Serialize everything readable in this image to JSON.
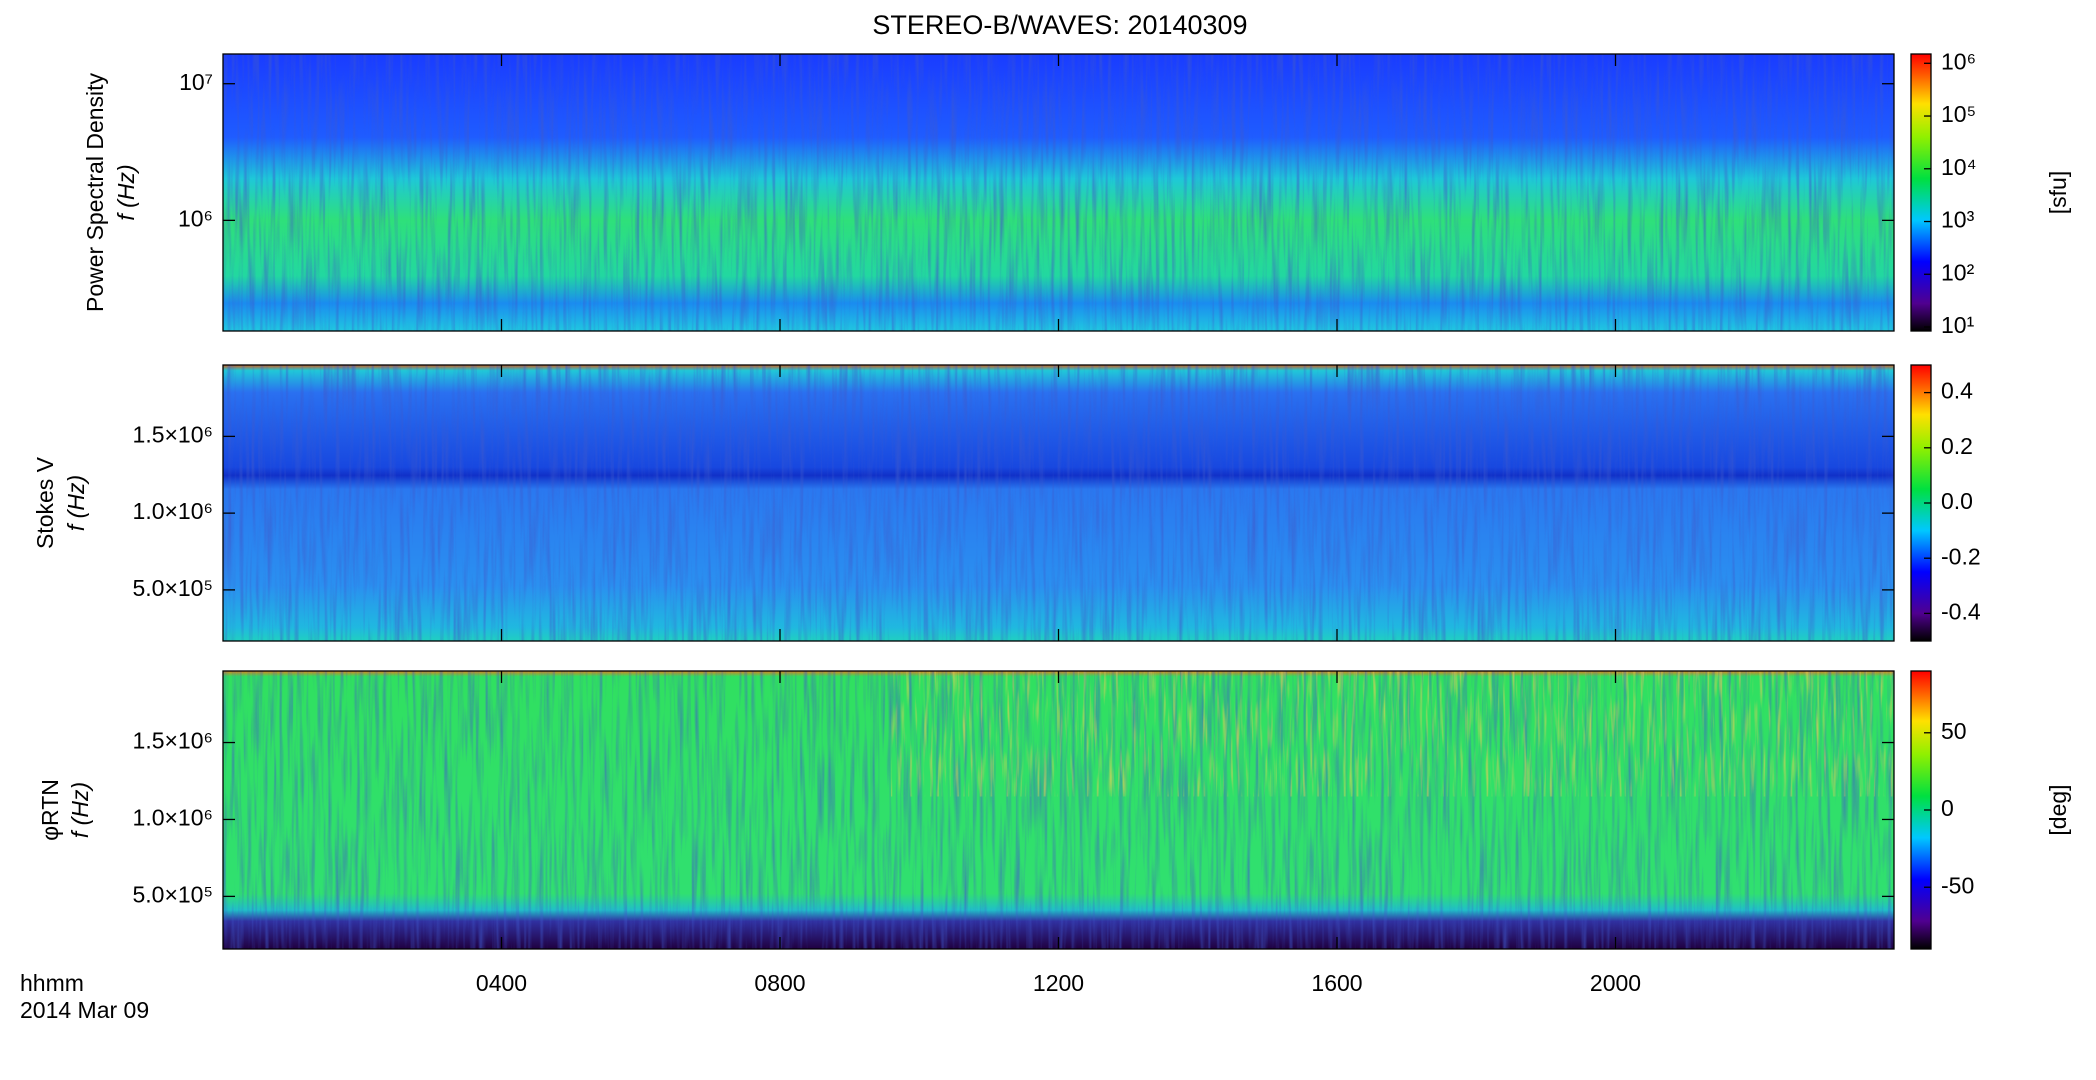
{
  "figure": {
    "title": "STEREO-B/WAVES: 20140309",
    "xlabel": "hhmm",
    "date": "2014 Mar 09"
  },
  "chart_data": [
    {
      "type": "spectrogram",
      "ylabel": "Power Spectral Density",
      "ylabel2": "f (Hz)",
      "ylog": true,
      "ylim": [
        155000,
        16500000
      ],
      "yticks": [
        {
          "value": 1000000,
          "label": "10⁶"
        },
        {
          "value": 10000000,
          "label": "10⁷"
        }
      ],
      "xlim": [
        0,
        24
      ],
      "xticks": [
        {
          "value": 4,
          "label": "0400"
        },
        {
          "value": 8,
          "label": "0800"
        },
        {
          "value": 12,
          "label": "1200"
        },
        {
          "value": 16,
          "label": "1600"
        },
        {
          "value": 20,
          "label": "2000"
        }
      ],
      "colorbar": {
        "log": true,
        "lim": [
          8.4,
          1500000
        ],
        "label": "[sfu]",
        "ticks": [
          {
            "value": 10,
            "label": "10¹"
          },
          {
            "value": 100,
            "label": "10²"
          },
          {
            "value": 1000,
            "label": "10³"
          },
          {
            "value": 10000,
            "label": "10⁴"
          },
          {
            "value": 100000,
            "label": "10⁵"
          },
          {
            "value": 1000000,
            "label": "10⁶"
          }
        ]
      }
    },
    {
      "type": "spectrogram",
      "ylabel": "Stokes V",
      "ylabel2": "f (Hz)",
      "ylog": false,
      "ylim": [
        167000,
        1965000
      ],
      "yticks": [
        {
          "value": 500000,
          "label": "5.0×10⁵"
        },
        {
          "value": 1000000,
          "label": "1.0×10⁶"
        },
        {
          "value": 1500000,
          "label": "1.5×10⁶"
        }
      ],
      "xlim": [
        0,
        24
      ],
      "xticks": [
        {
          "value": 4,
          "label": "0400"
        },
        {
          "value": 8,
          "label": "0800"
        },
        {
          "value": 12,
          "label": "1200"
        },
        {
          "value": 16,
          "label": "1600"
        },
        {
          "value": 20,
          "label": "2000"
        }
      ],
      "colorbar": {
        "log": false,
        "lim": [
          -0.5,
          0.5
        ],
        "ticks": [
          -0.4,
          -0.2,
          {
            "value": 0,
            "label": "0.0"
          },
          0.2,
          0.4
        ]
      }
    },
    {
      "type": "spectrogram",
      "ylabel": "φRTN",
      "ylabel2": "f (Hz)",
      "ylog": false,
      "ylim": [
        158000,
        1965000
      ],
      "yticks": [
        {
          "value": 500000,
          "label": "5.0×10⁵"
        },
        {
          "value": 1000000,
          "label": "1.0×10⁶"
        },
        {
          "value": 1500000,
          "label": "1.5×10⁶"
        }
      ],
      "xlim": [
        0,
        24
      ],
      "xticks": [
        {
          "value": 4,
          "label": "0400"
        },
        {
          "value": 8,
          "label": "0800"
        },
        {
          "value": 12,
          "label": "1200"
        },
        {
          "value": 16,
          "label": "1600"
        },
        {
          "value": 20,
          "label": "2000"
        }
      ],
      "colorbar": {
        "log": false,
        "lim": [
          -90,
          90
        ],
        "label": "[deg]",
        "ticks": [
          -50,
          0,
          50
        ]
      }
    }
  ]
}
